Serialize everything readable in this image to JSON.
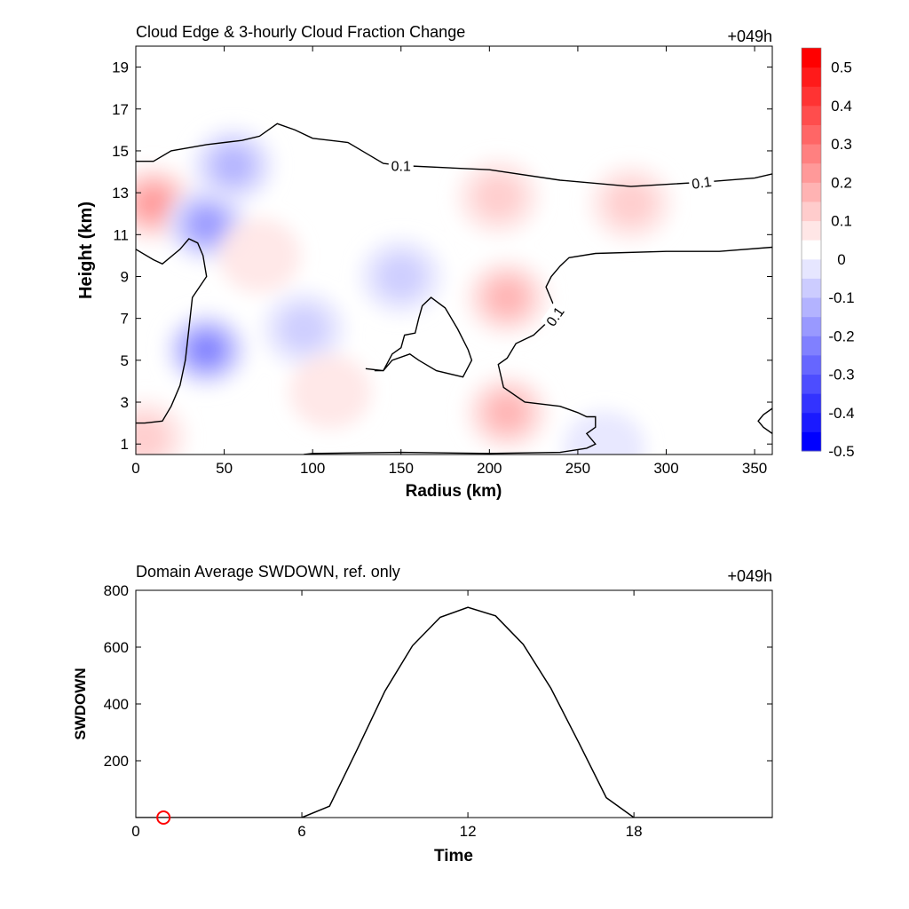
{
  "chart_data": [
    {
      "type": "heatmap",
      "title": "Cloud Edge & 3-hourly Cloud Fraction Change",
      "time_label": "+049h",
      "xlabel": "Radius (km)",
      "ylabel": "Height (km)",
      "xlim": [
        0,
        360
      ],
      "ylim": [
        0.5,
        20
      ],
      "xticks": [
        0,
        50,
        100,
        150,
        200,
        250,
        300,
        350
      ],
      "yticks": [
        1,
        3,
        5,
        7,
        9,
        11,
        13,
        15,
        17,
        19
      ],
      "colorbar": {
        "levels": [
          -0.55,
          -0.5,
          -0.45,
          -0.4,
          -0.35,
          -0.3,
          -0.25,
          -0.2,
          -0.15,
          -0.1,
          -0.05,
          0.05,
          0.1,
          0.15,
          0.2,
          0.25,
          0.3,
          0.35,
          0.4,
          0.45,
          0.5,
          0.55
        ],
        "colors_negative": [
          "#0000ff",
          "#1a1aff",
          "#3333ff",
          "#4d4dff",
          "#6666ff",
          "#8080ff",
          "#9999ff",
          "#b3b3ff",
          "#ccccff",
          "#e6e6ff"
        ],
        "color_zero": "#ffffff",
        "colors_positive": [
          "#ffe6e6",
          "#ffcccc",
          "#ffb3b3",
          "#ff9999",
          "#ff8080",
          "#ff6666",
          "#ff4d4d",
          "#ff3333",
          "#ff1a1a",
          "#ff0000"
        ],
        "tick_labels": [
          "0.5",
          "0.4",
          "0.3",
          "0.2",
          "0.1",
          "0",
          "-0.1",
          "-0.2",
          "-0.3",
          "-0.4",
          "-0.5"
        ]
      },
      "contour_label": "0.1",
      "anomalies": [
        {
          "x": 10,
          "y": 12.5,
          "value": 0.18
        },
        {
          "x": 5,
          "y": 1.3,
          "value": 0.12
        },
        {
          "x": 40,
          "y": 11.5,
          "value": -0.22
        },
        {
          "x": 40,
          "y": 5.5,
          "value": -0.24
        },
        {
          "x": 55,
          "y": 14.3,
          "value": -0.13
        },
        {
          "x": 95,
          "y": 6.5,
          "value": -0.12
        },
        {
          "x": 150,
          "y": 9.0,
          "value": -0.08
        },
        {
          "x": 210,
          "y": 8.0,
          "value": 0.16
        },
        {
          "x": 205,
          "y": 12.8,
          "value": 0.1
        },
        {
          "x": 210,
          "y": 2.5,
          "value": 0.13
        },
        {
          "x": 280,
          "y": 12.5,
          "value": 0.1
        },
        {
          "x": 70,
          "y": 10.0,
          "value": 0.05
        },
        {
          "x": 110,
          "y": 3.5,
          "value": 0.05
        },
        {
          "x": 265,
          "y": 0.8,
          "value": -0.05
        }
      ],
      "contour_paths": [
        [
          [
            0,
            14.5
          ],
          [
            10,
            14.5
          ],
          [
            20,
            15
          ],
          [
            40,
            15.3
          ],
          [
            60,
            15.5
          ],
          [
            70,
            15.7
          ],
          [
            80,
            16.3
          ],
          [
            90,
            16
          ],
          [
            100,
            15.6
          ],
          [
            120,
            15.4
          ],
          [
            130,
            14.9
          ],
          [
            140,
            14.4
          ],
          [
            150,
            14.3
          ],
          [
            200,
            14.1
          ],
          [
            240,
            13.6
          ],
          [
            280,
            13.3
          ],
          [
            320,
            13.5
          ],
          [
            350,
            13.7
          ],
          [
            360,
            13.9
          ]
        ],
        [
          [
            0,
            10.3
          ],
          [
            10,
            9.8
          ],
          [
            15,
            9.6
          ],
          [
            25,
            10.3
          ],
          [
            30,
            10.8
          ],
          [
            35,
            10.6
          ],
          [
            38,
            10
          ],
          [
            40,
            9.0
          ],
          [
            32,
            8.0
          ],
          [
            30,
            6.5
          ],
          [
            28,
            5.0
          ],
          [
            25,
            3.8
          ],
          [
            20,
            2.8
          ],
          [
            15,
            2.1
          ],
          [
            5,
            2.0
          ],
          [
            0,
            2.0
          ]
        ],
        [
          [
            360,
            10.4
          ],
          [
            330,
            10.2
          ],
          [
            300,
            10.2
          ],
          [
            260,
            10.1
          ],
          [
            245,
            9.9
          ],
          [
            240,
            9.5
          ],
          [
            235,
            9.0
          ],
          [
            232,
            8.5
          ],
          [
            237,
            7.5
          ],
          [
            235,
            7.0
          ],
          [
            225,
            6.2
          ],
          [
            215,
            5.8
          ],
          [
            210,
            5.1
          ],
          [
            205,
            4.8
          ],
          [
            208,
            3.7
          ],
          [
            220,
            3.0
          ],
          [
            240,
            2.8
          ],
          [
            250,
            2.5
          ],
          [
            255,
            2.3
          ],
          [
            260,
            2.3
          ],
          [
            260,
            1.8
          ],
          [
            255,
            1.5
          ],
          [
            260,
            1.0
          ],
          [
            255,
            0.8
          ],
          [
            240,
            0.6
          ],
          [
            200,
            0.55
          ],
          [
            150,
            0.6
          ],
          [
            100,
            0.55
          ],
          [
            95,
            0.5
          ]
        ],
        [
          [
            130,
            4.6
          ],
          [
            140,
            4.5
          ],
          [
            145,
            5.3
          ],
          [
            150,
            5.6
          ],
          [
            152,
            6.2
          ],
          [
            158,
            6.3
          ],
          [
            160,
            7.0
          ],
          [
            162,
            7.6
          ],
          [
            167,
            8.0
          ],
          [
            175,
            7.5
          ],
          [
            182,
            6.5
          ],
          [
            188,
            5.5
          ],
          [
            190,
            5.0
          ],
          [
            185,
            4.2
          ],
          [
            170,
            4.5
          ],
          [
            160,
            5.0
          ],
          [
            155,
            5.3
          ],
          [
            145,
            5.0
          ],
          [
            140,
            4.5
          ],
          [
            135,
            4.5
          ]
        ],
        [
          [
            360,
            2.7
          ],
          [
            355,
            2.4
          ],
          [
            352,
            2.1
          ],
          [
            355,
            1.8
          ],
          [
            360,
            1.5
          ]
        ]
      ],
      "contour_label_positions": [
        {
          "x": 150,
          "y": 14.3,
          "rotate": 0
        },
        {
          "x": 320,
          "y": 13.5,
          "rotate": -8
        },
        {
          "x": 237,
          "y": 7.1,
          "rotate": -55
        }
      ]
    },
    {
      "type": "line",
      "title": "Domain Average SWDOWN, ref. only",
      "time_label": "+049h",
      "xlabel": "Time",
      "ylabel": "SWDOWN",
      "xlim": [
        0,
        23
      ],
      "ylim": [
        0,
        800
      ],
      "xticks": [
        0,
        6,
        12,
        18
      ],
      "yticks": [
        200,
        400,
        600,
        800
      ],
      "series": [
        {
          "x": [
            0,
            1,
            2,
            3,
            4,
            5,
            6,
            7,
            8,
            9,
            10,
            11,
            12,
            13,
            14,
            15,
            16,
            17,
            18,
            19,
            20,
            21,
            22,
            23
          ],
          "values": [
            0,
            0,
            0,
            0,
            0,
            0,
            0,
            40,
            240,
            445,
            605,
            705,
            740,
            710,
            610,
            455,
            265,
            70,
            0,
            0,
            0,
            0,
            0,
            0
          ],
          "color": "#000000"
        }
      ],
      "marker": {
        "x": 1,
        "y": 0,
        "color": "#ff0000"
      }
    }
  ]
}
